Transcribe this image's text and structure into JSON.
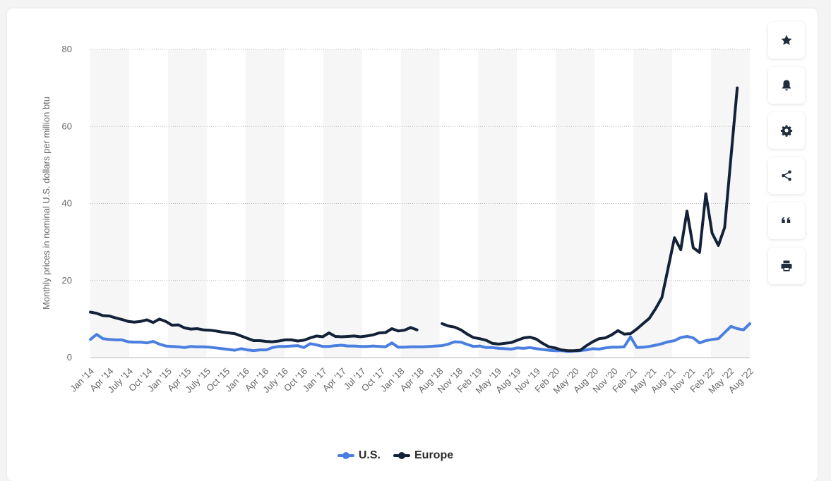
{
  "toolbar": {
    "buttons": [
      {
        "icon": "star-icon"
      },
      {
        "icon": "bell-icon"
      },
      {
        "icon": "gear-icon"
      },
      {
        "icon": "share-icon"
      },
      {
        "icon": "quote-icon"
      },
      {
        "icon": "print-icon"
      }
    ]
  },
  "chart_data": {
    "type": "line",
    "ylabel": "Monthly prices in nominal U.S. dollars per million btu",
    "xlabel": "",
    "ylim": [
      0,
      80
    ],
    "yticks": [
      0,
      20,
      40,
      60,
      80
    ],
    "grid": true,
    "legend_position": "bottom",
    "tick_labels": [
      "Jan '14",
      "Apr '14",
      "July '14",
      "Oct '14",
      "Jan '15",
      "Apr '15",
      "July '15",
      "Oct '15",
      "Jan '16",
      "Apr '16",
      "July '16",
      "Oct '16",
      "Jan '17",
      "Apr '17",
      "Jul '17",
      "Oct '17",
      "Jan '18",
      "Apr '18",
      "Aug '18",
      "Nov '18",
      "Feb '19",
      "May '19",
      "Aug '19",
      "Nov '19",
      "Feb '20",
      "May '20",
      "Aug '20",
      "Nov '20",
      "Feb '21",
      "May '21",
      "Aug '21",
      "Nov '21",
      "Feb '22",
      "May '22",
      "Aug '22"
    ],
    "series": [
      {
        "name": "U.S.",
        "color": "#4a7fe0",
        "values": [
          4.7,
          6.0,
          4.9,
          4.7,
          4.6,
          4.6,
          4.1,
          4.0,
          4.0,
          3.8,
          4.2,
          3.5,
          3.0,
          2.9,
          2.8,
          2.6,
          2.9,
          2.8,
          2.8,
          2.7,
          2.5,
          2.3,
          2.1,
          1.9,
          2.3,
          2.0,
          1.8,
          2.0,
          2.0,
          2.6,
          2.9,
          2.9,
          3.0,
          3.1,
          2.6,
          3.6,
          3.3,
          2.9,
          2.9,
          3.1,
          3.2,
          3.0,
          3.0,
          2.9,
          2.9,
          3.0,
          2.9,
          2.8,
          3.8,
          2.7,
          2.7,
          2.8,
          2.8,
          2.8,
          2.9,
          3.0,
          3.1,
          3.5,
          4.1,
          4.0,
          3.4,
          2.9,
          3.0,
          2.6,
          2.6,
          2.4,
          2.3,
          2.2,
          2.5,
          2.4,
          2.6,
          2.3,
          2.1,
          1.9,
          1.8,
          1.8,
          1.6,
          1.7,
          1.8,
          2.0,
          2.3,
          2.2,
          2.5,
          2.7,
          2.7,
          2.8,
          5.4,
          2.6,
          2.7,
          2.9,
          3.2,
          3.6,
          4.1,
          4.4,
          5.2,
          5.5,
          5.1,
          3.8,
          4.4,
          4.7,
          4.9,
          6.5,
          8.1,
          7.5,
          7.2,
          8.8
        ]
      },
      {
        "name": "Europe",
        "color": "#132238",
        "values": [
          11.8,
          11.5,
          10.9,
          10.8,
          10.3,
          9.9,
          9.4,
          9.2,
          9.4,
          9.8,
          9.1,
          10.0,
          9.4,
          8.4,
          8.5,
          7.7,
          7.4,
          7.5,
          7.2,
          7.1,
          6.9,
          6.6,
          6.4,
          6.2,
          5.6,
          5.0,
          4.4,
          4.4,
          4.2,
          4.1,
          4.3,
          4.6,
          4.6,
          4.3,
          4.5,
          5.1,
          5.6,
          5.4,
          6.4,
          5.5,
          5.4,
          5.5,
          5.6,
          5.4,
          5.6,
          5.9,
          6.4,
          6.5,
          7.5,
          6.9,
          7.1,
          7.8,
          7.2,
          null,
          null,
          null,
          8.8,
          8.2,
          7.9,
          7.2,
          6.1,
          5.2,
          4.9,
          4.5,
          3.7,
          3.5,
          3.7,
          3.9,
          4.5,
          5.1,
          5.3,
          4.8,
          3.7,
          2.8,
          2.5,
          2.0,
          1.8,
          1.8,
          1.9,
          3.1,
          4.1,
          4.9,
          5.1,
          5.9,
          7.0,
          6.1,
          6.2,
          7.4,
          8.8,
          10.2,
          12.7,
          15.6,
          23.3,
          31.1,
          28.0,
          38.0,
          28.5,
          27.3,
          42.5,
          32.3,
          29.1,
          33.8,
          52.0,
          70.0
        ]
      }
    ]
  }
}
